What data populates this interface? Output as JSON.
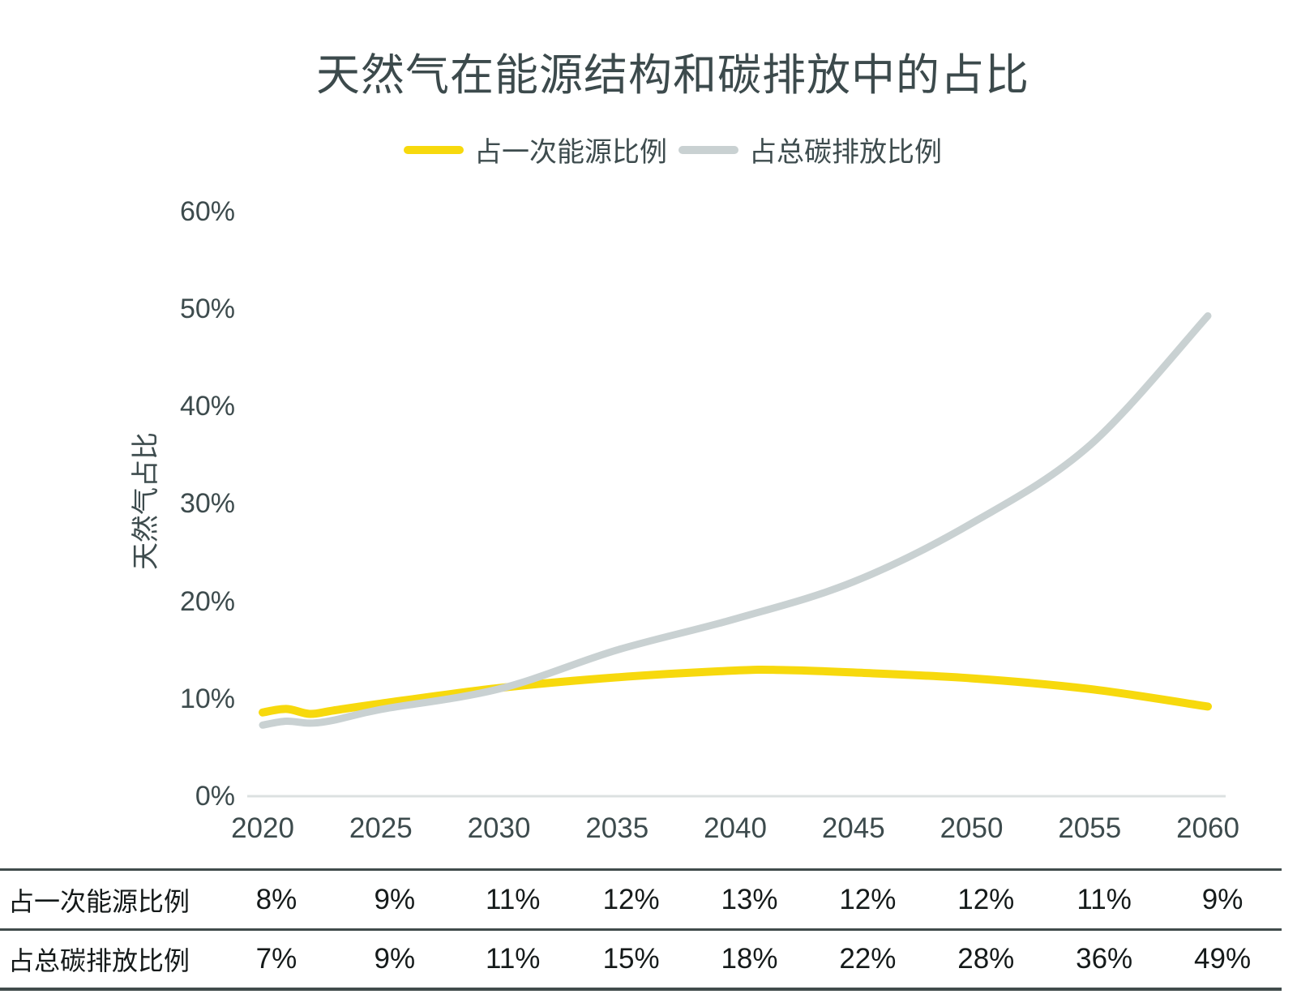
{
  "page": {
    "background": "#FFFFFF"
  },
  "chart_data": {
    "type": "line",
    "title": "天然气在能源结构和碳排放中的占比",
    "ylabel": "天然气占比",
    "unit": "%",
    "x": [
      2020,
      2025,
      2030,
      2035,
      2040,
      2045,
      2050,
      2055,
      2060
    ],
    "yticks": [
      0,
      10,
      20,
      30,
      40,
      50,
      60
    ],
    "ylim": [
      0,
      60
    ],
    "xlim": [
      2020,
      2060
    ],
    "grid": false,
    "legend_position": "top",
    "colors": {
      "primary_energy_line": "#F7D90D",
      "carbon_line": "#C9D1D2",
      "axis_text": "#3D4B4D",
      "axis_line": "#DCE1E1",
      "title_text": "#3C4A4C",
      "table_border": "#414C4C",
      "table_text": "#151A1A"
    },
    "series": [
      {
        "name": "占一次能源比例",
        "color": "#F7D90D",
        "values": [
          8,
          9,
          11,
          12,
          13,
          12,
          12,
          11,
          9
        ],
        "curve": [
          [
            2020,
            8.6
          ],
          [
            2021,
            8.95
          ],
          [
            2022,
            8.45
          ],
          [
            2023,
            8.8
          ],
          [
            2025,
            9.5
          ],
          [
            2030,
            11.1
          ],
          [
            2035,
            12.2
          ],
          [
            2040,
            12.9
          ],
          [
            2042,
            12.95
          ],
          [
            2045,
            12.7
          ],
          [
            2050,
            12.1
          ],
          [
            2055,
            11.0
          ],
          [
            2060,
            9.2
          ]
        ]
      },
      {
        "name": "占总碳排放比例",
        "color": "#C9D1D2",
        "values": [
          7,
          9,
          11,
          15,
          18,
          22,
          28,
          36,
          49
        ],
        "curve": [
          [
            2020,
            7.3
          ],
          [
            2021,
            7.7
          ],
          [
            2022,
            7.5
          ],
          [
            2023,
            7.8
          ],
          [
            2025,
            8.9
          ],
          [
            2030,
            11.0
          ],
          [
            2035,
            15.0
          ],
          [
            2040,
            18.2
          ],
          [
            2045,
            22.0
          ],
          [
            2050,
            28.0
          ],
          [
            2055,
            36.0
          ],
          [
            2060,
            49.3
          ]
        ]
      }
    ]
  }
}
